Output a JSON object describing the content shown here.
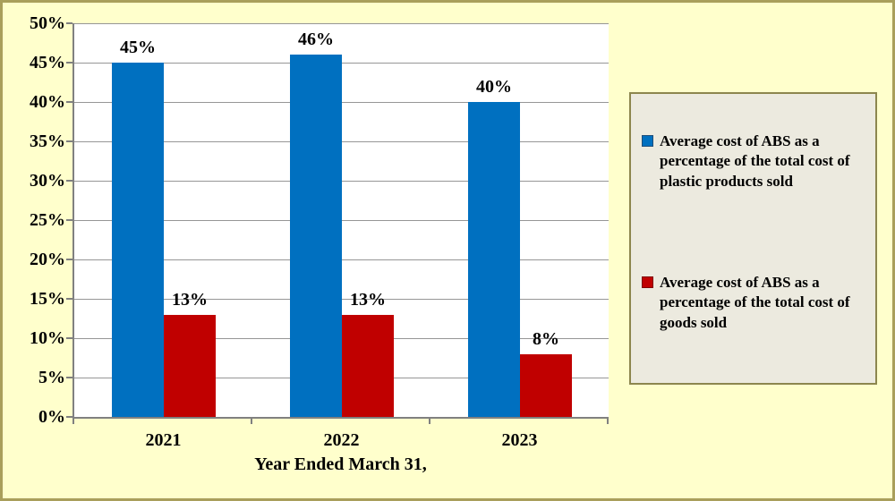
{
  "chart_data": {
    "type": "bar",
    "categories": [
      "2021",
      "2022",
      "2023"
    ],
    "series": [
      {
        "name": "Average cost of ABS as a percentage of the total cost of plastic products sold",
        "color": "#0070C0",
        "values": [
          45,
          46,
          40
        ],
        "labels": [
          "45%",
          "46%",
          "40%"
        ]
      },
      {
        "name": "Average cost of ABS as a percentage of the total cost of goods sold",
        "color": "#C00000",
        "values": [
          13,
          13,
          8
        ],
        "labels": [
          "13%",
          "13%",
          "8%"
        ]
      }
    ],
    "xlabel": "Year Ended March 31,",
    "ylabel": "",
    "ylim": [
      0,
      50
    ],
    "ytick_step": 5,
    "ytick_labels": [
      "0%",
      "5%",
      "10%",
      "15%",
      "20%",
      "25%",
      "30%",
      "35%",
      "40%",
      "45%",
      "50%"
    ],
    "grid": true,
    "legend_position": "right"
  },
  "legend": {
    "entries": [
      {
        "label": "Average cost of ABS as a\npercentage of the total cost of\nplastic products sold",
        "color": "#0070C0",
        "border_color": "#1F4E79"
      },
      {
        "label": "Average cost of ABS as a\npercentage of the total cost of\ngoods sold",
        "color": "#C00000",
        "border_color": "#7F0000"
      }
    ]
  },
  "colors": {
    "background": "#FFFFCC",
    "frame_border": "#A99F5B",
    "plot_background": "#FFFFFF",
    "gridline": "#969696",
    "axis": "#808080",
    "legend_background": "#ECEADF",
    "legend_border": "#8C864E",
    "series_blue": "#0070C0",
    "series_red": "#C00000"
  }
}
